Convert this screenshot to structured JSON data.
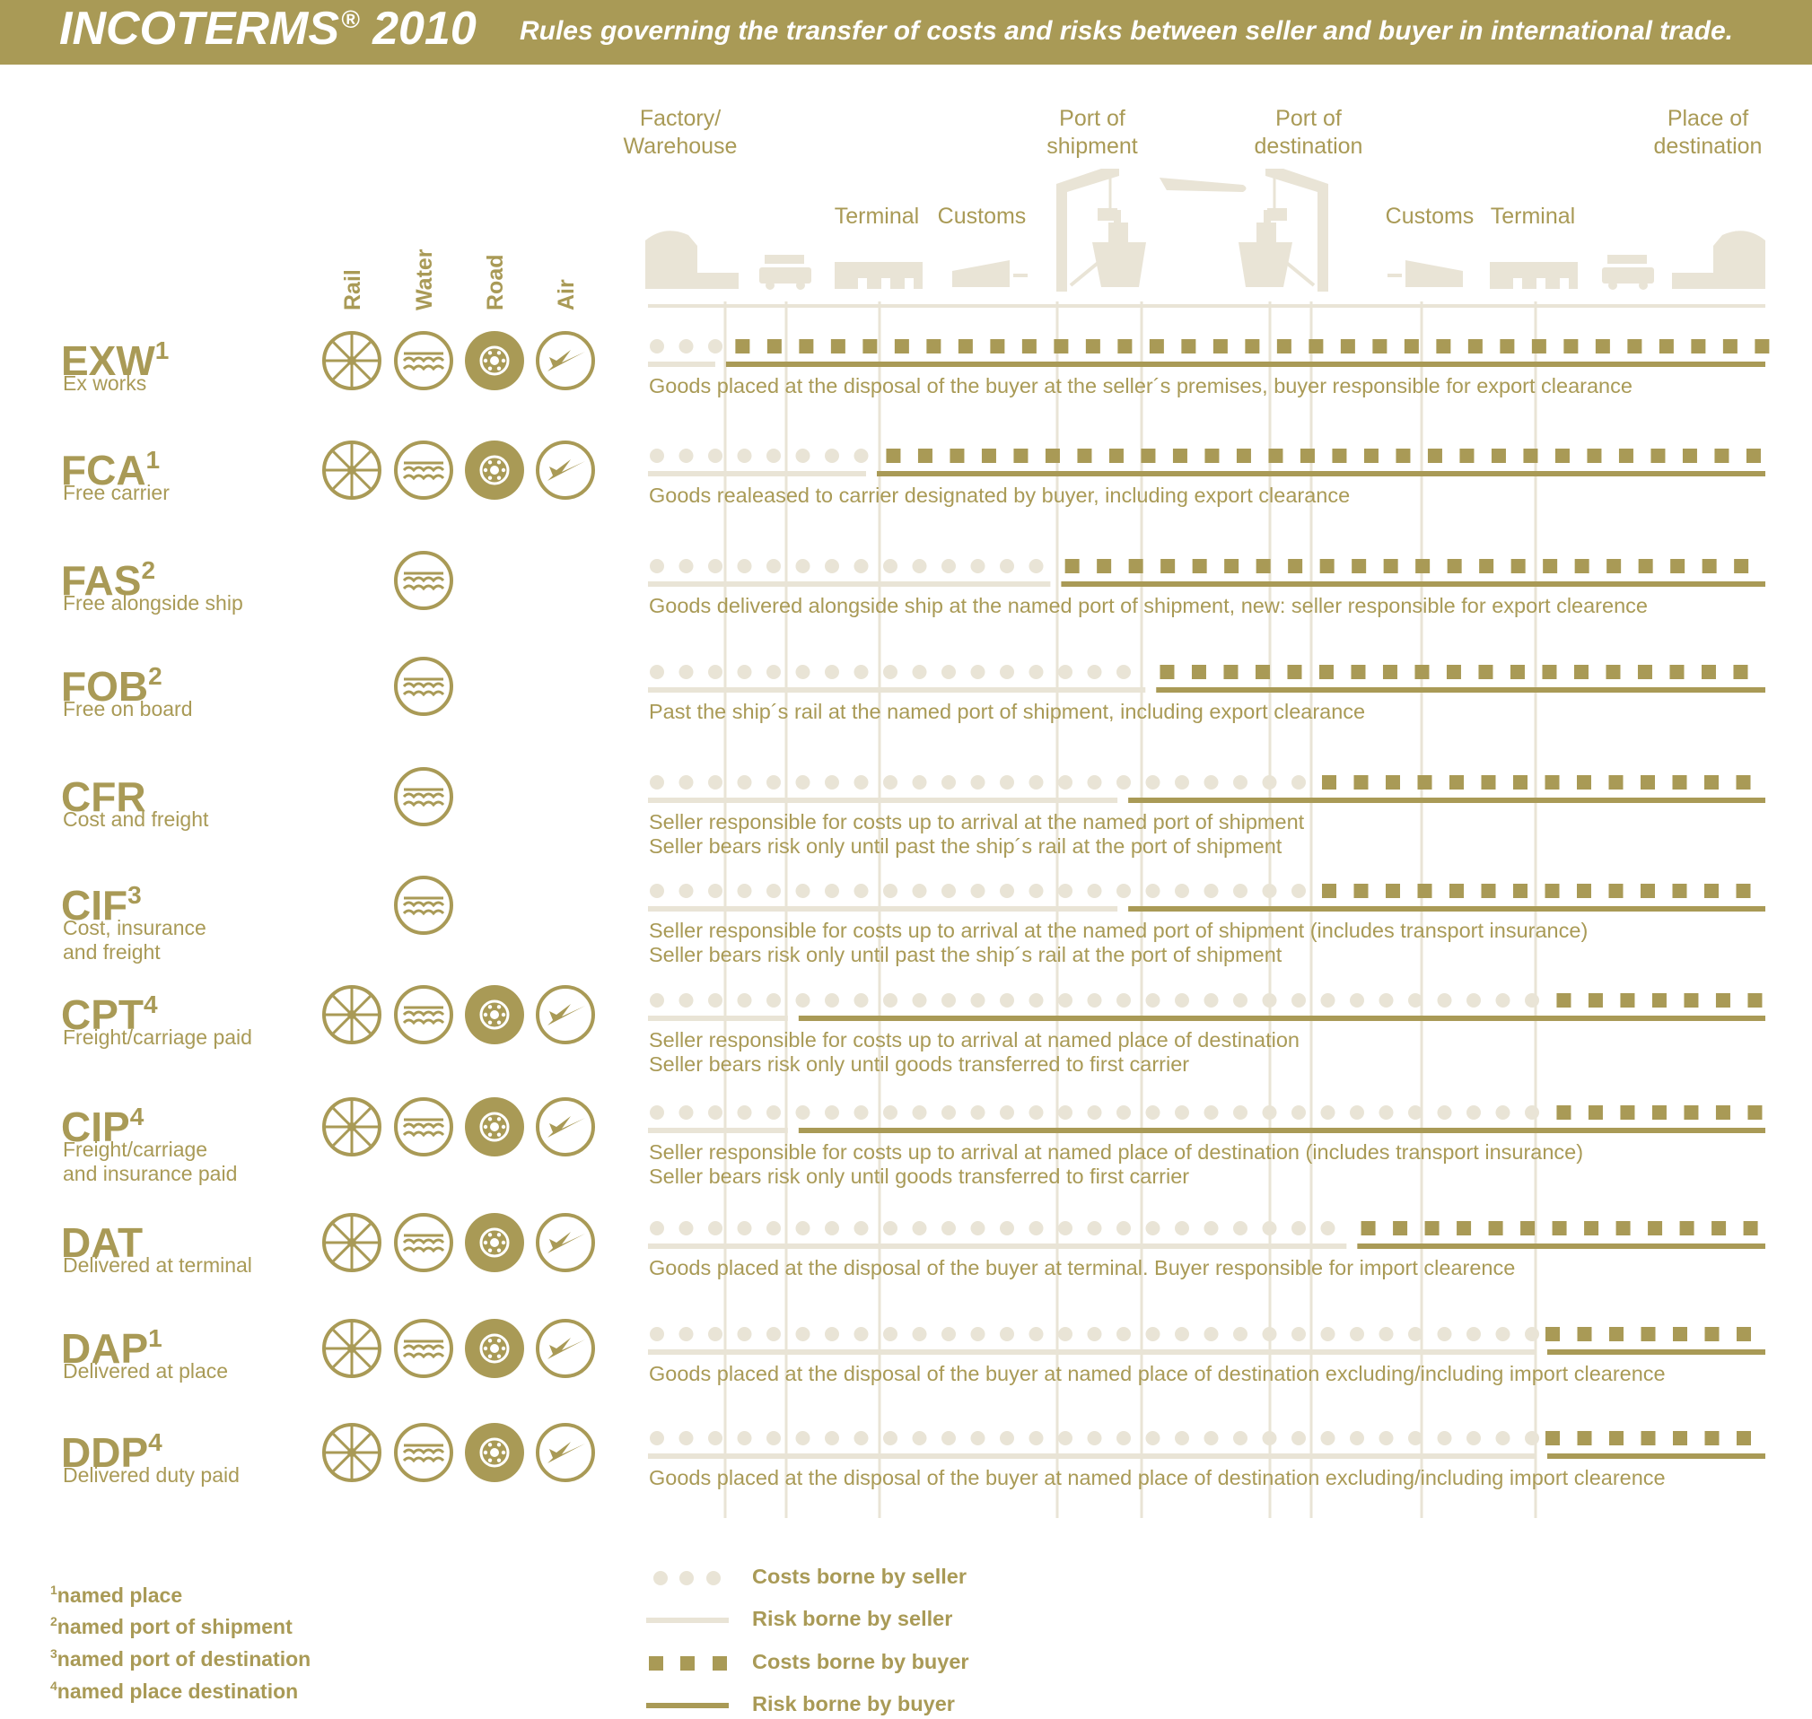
{
  "header": {
    "title": "INCOTERMS",
    "title_mark": "®",
    "title_year": "2010",
    "subtitle": "Rules governing the transfer of costs and risks between seller and buyer in international trade."
  },
  "colors": {
    "dark": "#a99a56",
    "light": "#e9e4d6",
    "white": "#ffffff"
  },
  "locations": [
    {
      "label": "Factory/\nWarehouse"
    },
    {
      "label": "Terminal"
    },
    {
      "label": "Customs"
    },
    {
      "label": "Port of\nshipment"
    },
    {
      "label": "Port of\ndestination"
    },
    {
      "label": "Customs"
    },
    {
      "label": "Terminal"
    },
    {
      "label": "Place of\ndestination"
    }
  ],
  "transport_modes": [
    {
      "label": "Rail",
      "icon": "wheel-icon"
    },
    {
      "label": "Water",
      "icon": "waves-icon"
    },
    {
      "label": "Road",
      "icon": "tire-icon"
    },
    {
      "label": "Air",
      "icon": "plane-icon"
    }
  ],
  "terms": [
    {
      "code": "EXW",
      "sup": "1",
      "name": "Ex works",
      "modes": [
        "Rail",
        "Water",
        "Road",
        "Air"
      ],
      "cost_transfer": 0.075,
      "risk_transfer": 0.065,
      "description": "Goods placed at the disposal of the buyer at the seller´s premises, buyer responsible for export clearance"
    },
    {
      "code": "FCA",
      "sup": "1",
      "name": "Free carrier",
      "modes": [
        "Rail",
        "Water",
        "Road",
        "Air"
      ],
      "cost_transfer": 0.21,
      "risk_transfer": 0.2,
      "description": "Goods realeased to carrier designated by buyer, including export clearance"
    },
    {
      "code": "FAS",
      "sup": "2",
      "name": "Free alongside ship",
      "modes": [
        "Water"
      ],
      "cost_transfer": 0.37,
      "risk_transfer": 0.365,
      "description": "Goods delivered alongside ship at the named port of shipment, new: seller responsible for export clearence"
    },
    {
      "code": "FOB",
      "sup": "2",
      "name": "Free on board",
      "modes": [
        "Water"
      ],
      "cost_transfer": 0.455,
      "risk_transfer": 0.45,
      "description": "Past the ship´s rail at the named port of shipment, including export clearance"
    },
    {
      "code": "CFR",
      "sup": "",
      "name": "Cost and freight",
      "modes": [
        "Water"
      ],
      "cost_transfer": 0.6,
      "risk_transfer": 0.425,
      "description": "Seller responsible for costs up to arrival at the named port of shipment\nSeller bears risk only until past the ship´s rail at the port of shipment"
    },
    {
      "code": "CIF",
      "sup": "3",
      "name": "Cost, insurance\nand freight",
      "modes": [
        "Water"
      ],
      "cost_transfer": 0.6,
      "risk_transfer": 0.425,
      "description": "Seller responsible for costs up to arrival at the named port of shipment (includes transport insurance)\nSeller bears risk only until past the ship´s rail at the port of shipment"
    },
    {
      "code": "CPT",
      "sup": "4",
      "name": "Freight/carriage paid",
      "modes": [
        "Rail",
        "Water",
        "Road",
        "Air"
      ],
      "cost_transfer": 0.81,
      "risk_transfer": 0.13,
      "description": "Seller responsible for costs up to arrival at named place of destination\nSeller bears risk only until goods transferred to first carrier"
    },
    {
      "code": "CIP",
      "sup": "4",
      "name": "Freight/carriage\nand insurance paid",
      "modes": [
        "Rail",
        "Water",
        "Road",
        "Air"
      ],
      "cost_transfer": 0.81,
      "risk_transfer": 0.13,
      "description": "Seller responsible for costs up to arrival at named place of destination (includes transport insurance)\nSeller bears risk only until goods transferred to first carrier"
    },
    {
      "code": "DAT",
      "sup": "",
      "name": "Delivered at terminal",
      "modes": [
        "Rail",
        "Water",
        "Road",
        "Air"
      ],
      "cost_transfer": 0.635,
      "risk_transfer": 0.63,
      "description": "Goods placed at the disposal of the buyer at terminal. Buyer responsible for import clearence"
    },
    {
      "code": "DAP",
      "sup": "1",
      "name": "Delivered at place",
      "modes": [
        "Rail",
        "Water",
        "Road",
        "Air"
      ],
      "cost_transfer": 0.8,
      "risk_transfer": 0.8,
      "description": "Goods placed at the disposal of the buyer at named place of destination excluding/including import clearence"
    },
    {
      "code": "DDP",
      "sup": "4",
      "name": "Delivered duty paid",
      "modes": [
        "Rail",
        "Water",
        "Road",
        "Air"
      ],
      "cost_transfer": 0.8,
      "risk_transfer": 0.8,
      "description": "Goods placed at the disposal of the buyer at named place of destination excluding/including import clearence"
    }
  ],
  "footnotes": [
    {
      "num": "1",
      "text": "named place"
    },
    {
      "num": "2",
      "text": "named port of shipment"
    },
    {
      "num": "3",
      "text": "named port of destination"
    },
    {
      "num": "4",
      "text": "named place destination"
    }
  ],
  "legend": [
    {
      "label": "Costs borne by seller",
      "kind": "cost-seller"
    },
    {
      "label": "Risk borne by seller",
      "kind": "risk-seller"
    },
    {
      "label": "Costs borne by buyer",
      "kind": "cost-buyer"
    },
    {
      "label": "Risk borne by buyer",
      "kind": "risk-buyer"
    }
  ]
}
